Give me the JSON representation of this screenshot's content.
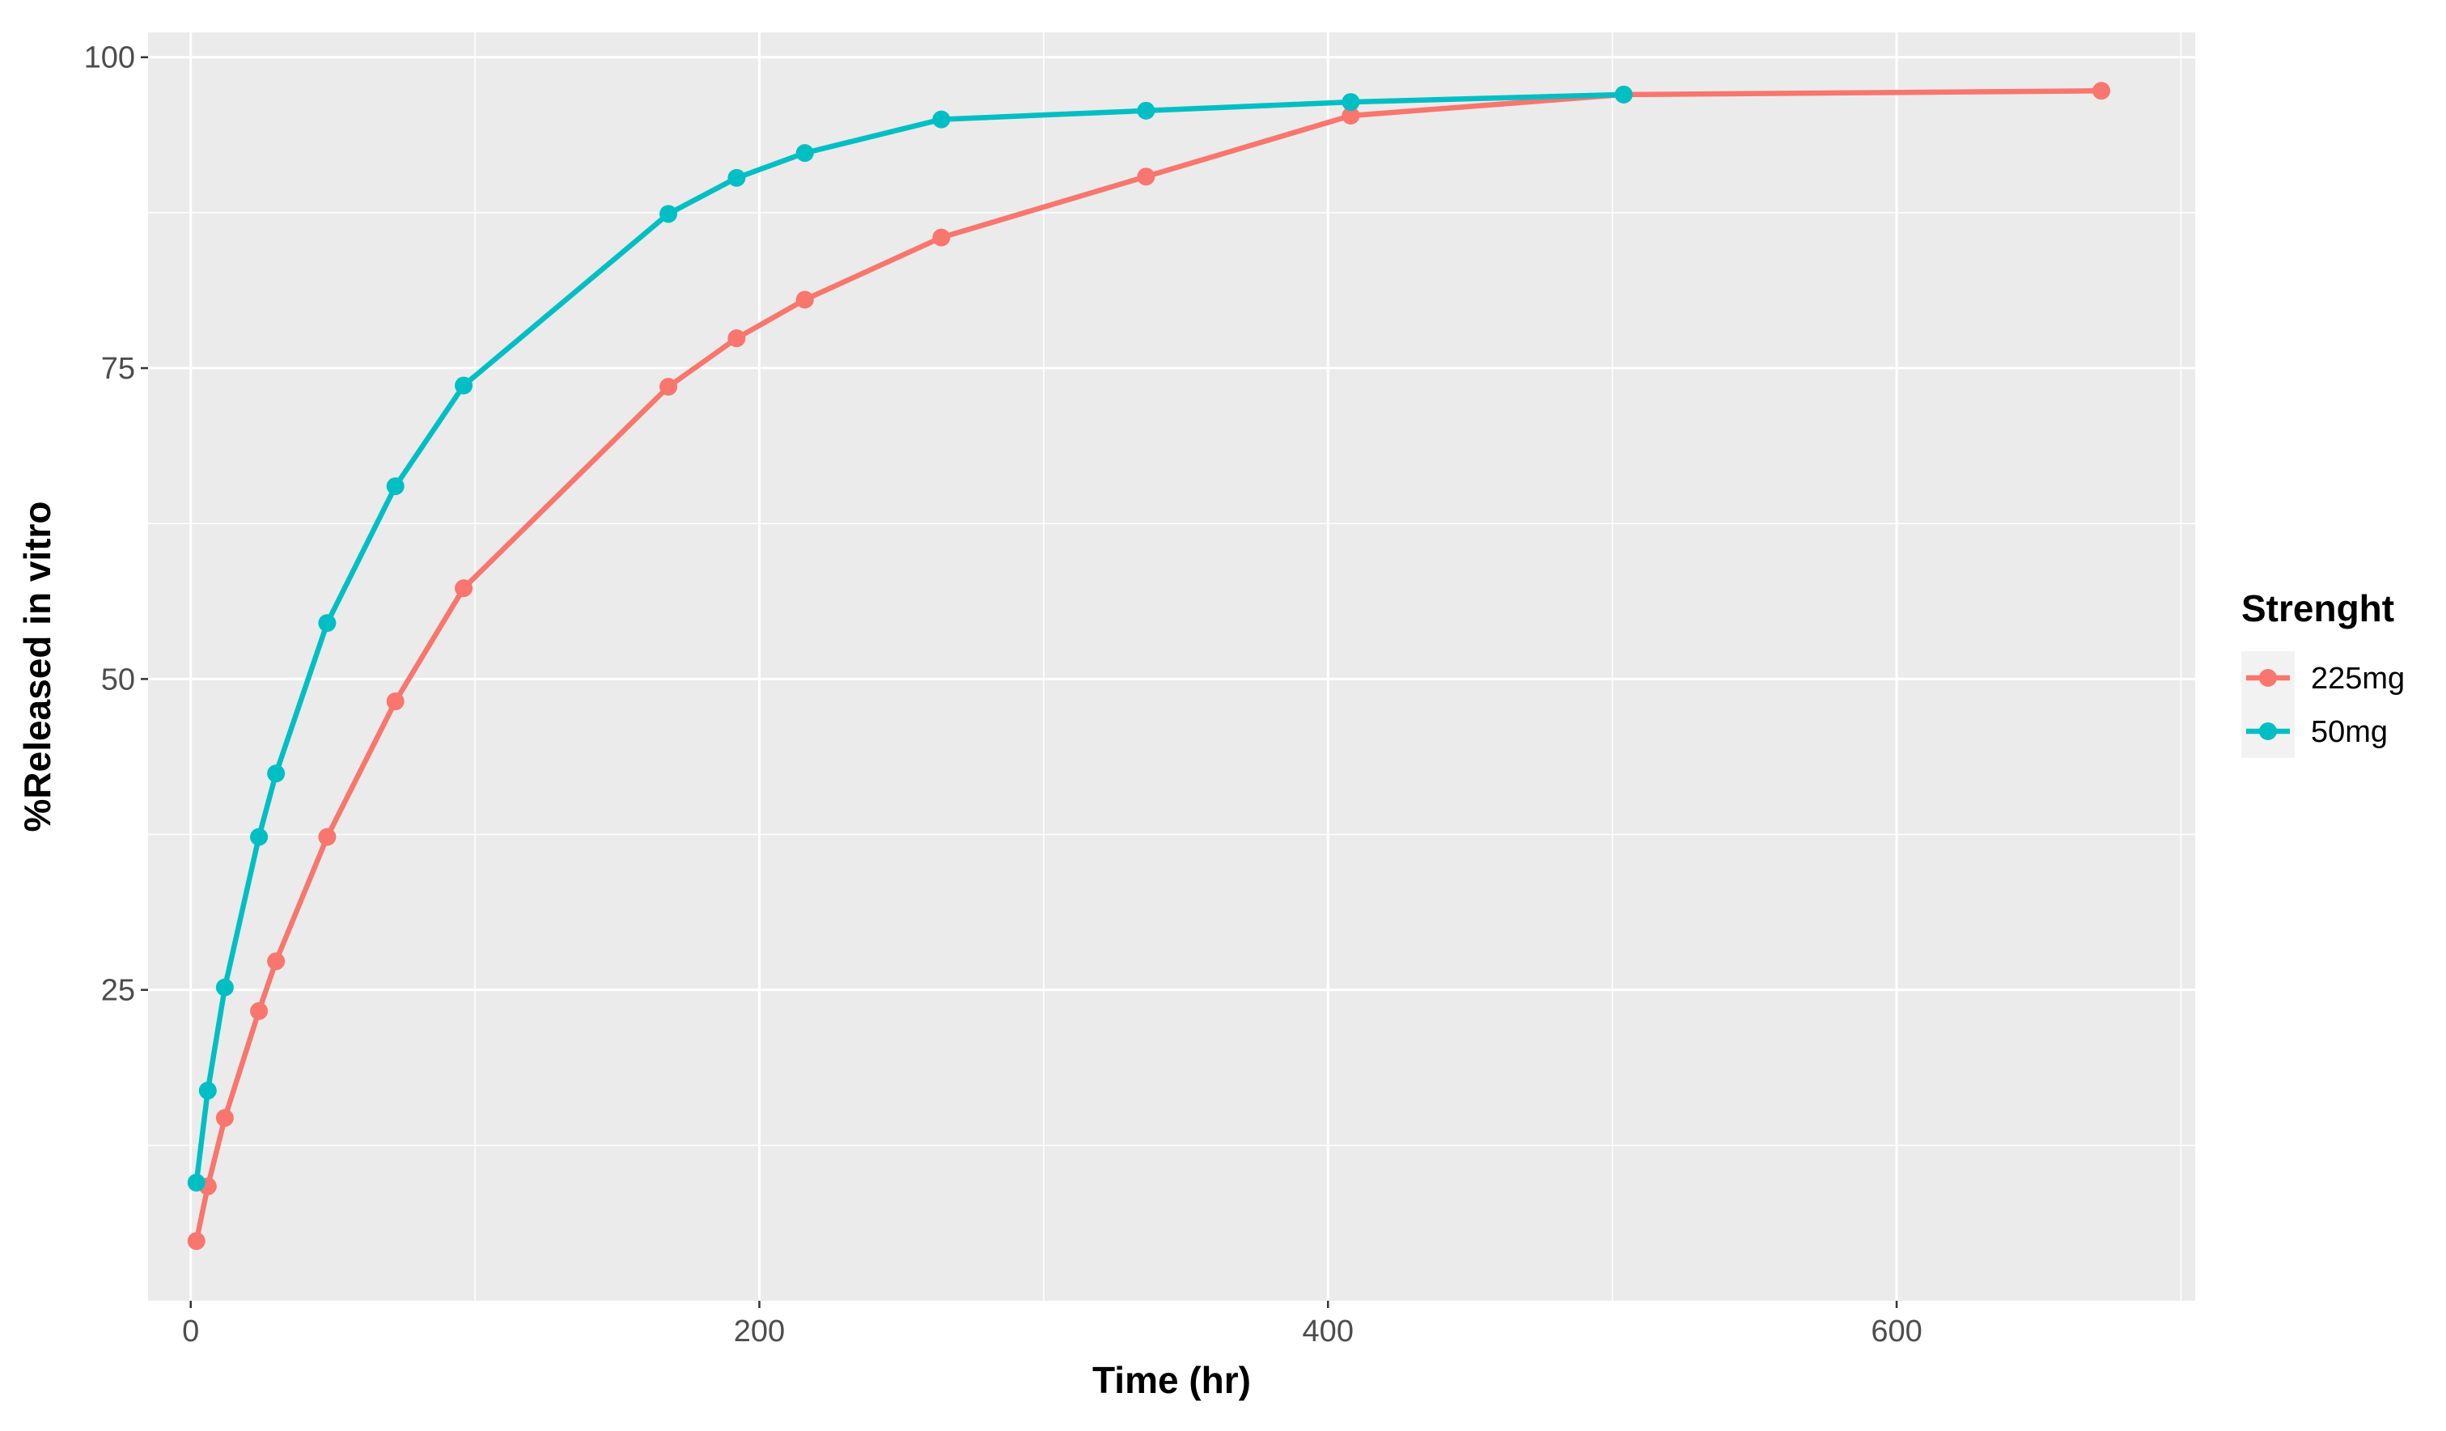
{
  "chart_data": {
    "type": "line",
    "title": "",
    "xlabel": "Time (hr)",
    "ylabel": "%Released in vitro",
    "xlim": [
      -15,
      705
    ],
    "ylim": [
      0,
      102
    ],
    "x_ticks": [
      0,
      200,
      400,
      600
    ],
    "y_ticks": [
      25,
      50,
      75,
      100
    ],
    "grid": true,
    "legend": {
      "title": "Strenght",
      "position": "right"
    },
    "series": [
      {
        "name": "225mg",
        "color": "#F8766D",
        "x": [
          2,
          6,
          12,
          24,
          30,
          48,
          72,
          96,
          168,
          192,
          216,
          264,
          336,
          408,
          504,
          672
        ],
        "y": [
          4.8,
          9.2,
          14.7,
          23.3,
          27.3,
          37.3,
          48.2,
          57.3,
          73.5,
          77.4,
          80.5,
          85.5,
          90.4,
          95.3,
          97.0,
          97.3
        ]
      },
      {
        "name": "50mg",
        "color": "#00BFC4",
        "x": [
          2,
          6,
          12,
          24,
          30,
          48,
          72,
          96,
          168,
          192,
          216,
          264,
          336,
          408,
          504
        ],
        "y": [
          9.5,
          16.9,
          25.2,
          37.3,
          42.4,
          54.5,
          65.5,
          73.6,
          87.4,
          90.3,
          92.3,
          95.0,
          95.7,
          96.4,
          97.0
        ]
      }
    ]
  }
}
